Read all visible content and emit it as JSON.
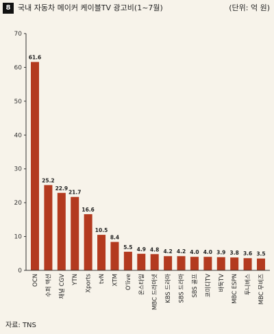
{
  "header": {
    "figure_number": "8",
    "title": "국내 자동차 메이커 케이블TV 광고비(1~7월)",
    "unit": "(단위: 억 원)"
  },
  "source": "자료: TNS",
  "colors": {
    "bar": "#b33a1f",
    "axis": "#333333"
  },
  "chart_data": {
    "type": "bar",
    "title": "국내 자동차 메이커 케이블TV 광고비(1~7월)",
    "xlabel": "",
    "ylabel": "",
    "ylim": [
      0,
      70
    ],
    "yticks": [
      0,
      10,
      20,
      30,
      40,
      50,
      60,
      70
    ],
    "grid": false,
    "categories": [
      "OCN",
      "수퍼 액션",
      "채널 CGV",
      "YTN",
      "Xports",
      "tvN",
      "XTM",
      "O'live",
      "온스타일",
      "MBC 드라마넷",
      "KBS 드라마",
      "SBS 드라마",
      "SBS 골프",
      "코미디TV",
      "바둑TV",
      "MBC ESPN",
      "투니버스",
      "MBC 무비즈"
    ],
    "values": [
      61.6,
      25.2,
      22.9,
      21.7,
      16.6,
      10.5,
      8.4,
      5.5,
      4.9,
      4.8,
      4.2,
      4.2,
      4.0,
      4.0,
      3.9,
      3.8,
      3.6,
      3.5
    ],
    "value_labels": [
      "61.6",
      "25.2",
      "22.9",
      "21.7",
      "16.6",
      "10.5",
      "8.4",
      "5.5",
      "4.9",
      "4.8",
      "4.2",
      "4.2",
      "4.0",
      "4.0",
      "3.9",
      "3.8",
      "3.6",
      "3.5"
    ]
  }
}
